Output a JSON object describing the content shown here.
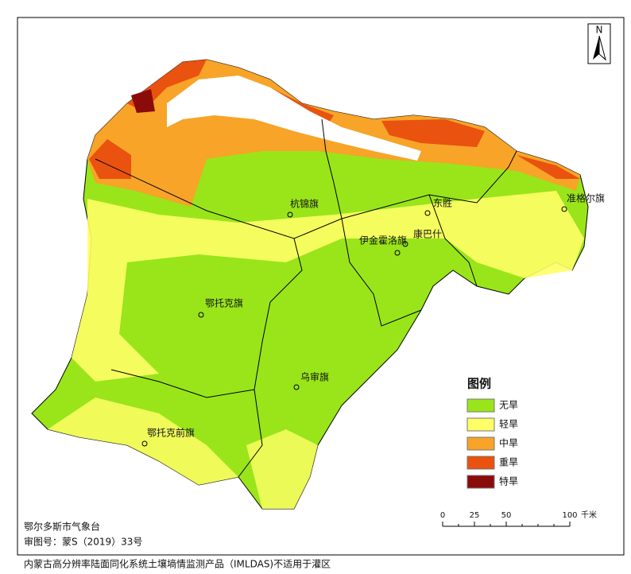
{
  "north": "N",
  "places": [
    "杭锦旗",
    "东胜",
    "康巴什",
    "伊金霍洛旗",
    "准格尔旗",
    "鄂托克旗",
    "乌审旗",
    "鄂托克前旗"
  ],
  "legend": {
    "title": "图例",
    "items": [
      {
        "label": "无旱",
        "color": "#99e51a"
      },
      {
        "label": "轻旱",
        "color": "#ffff66"
      },
      {
        "label": "中旱",
        "color": "#f7a428"
      },
      {
        "label": "重旱",
        "color": "#e9520f"
      },
      {
        "label": "特旱",
        "color": "#8b0a0a"
      }
    ]
  },
  "scale": {
    "ticks": [
      0,
      25,
      50,
      100
    ],
    "unit": "千米"
  },
  "footer": {
    "agency": "鄂尔多斯市气象台",
    "approval": "审图号：蒙S（2019）33号",
    "note": "内蒙古高分辨率陆面同化系统土壤墒情监测产品（IMLDAS)不适用于灌区"
  }
}
